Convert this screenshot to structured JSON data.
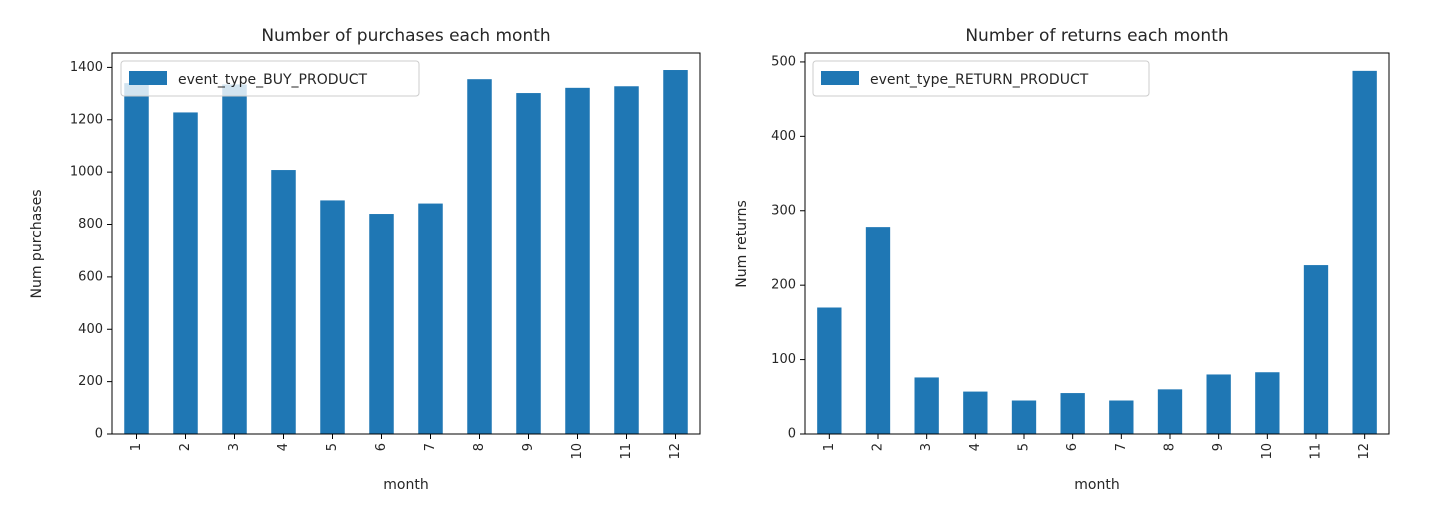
{
  "chart_data": [
    {
      "type": "bar",
      "title": "Number of purchases each month",
      "xlabel": "month",
      "ylabel": "Num purchases",
      "categories": [
        "1",
        "2",
        "3",
        "4",
        "5",
        "6",
        "7",
        "8",
        "9",
        "10",
        "11",
        "12"
      ],
      "series": [
        {
          "name": "event_type_BUY_PRODUCT",
          "values": [
            1340,
            1228,
            1335,
            1008,
            892,
            840,
            880,
            1355,
            1302,
            1322,
            1328,
            1390
          ]
        }
      ],
      "ylim": [
        0,
        1455
      ],
      "yticks": [
        0,
        200,
        400,
        600,
        800,
        1000,
        1200,
        1400
      ],
      "legend": "upper-left",
      "grid": false,
      "color": "#1f77b4"
    },
    {
      "type": "bar",
      "title": "Number of returns each month",
      "xlabel": "month",
      "ylabel": "Num returns",
      "categories": [
        "1",
        "2",
        "3",
        "4",
        "5",
        "6",
        "7",
        "8",
        "9",
        "10",
        "11",
        "12"
      ],
      "series": [
        {
          "name": "event_type_RETURN_PRODUCT",
          "values": [
            170,
            278,
            76,
            57,
            45,
            55,
            45,
            60,
            80,
            83,
            227,
            488
          ]
        }
      ],
      "ylim": [
        0,
        512
      ],
      "yticks": [
        0,
        100,
        200,
        300,
        400,
        500
      ],
      "legend": "upper-left",
      "grid": false,
      "color": "#1f77b4"
    }
  ]
}
